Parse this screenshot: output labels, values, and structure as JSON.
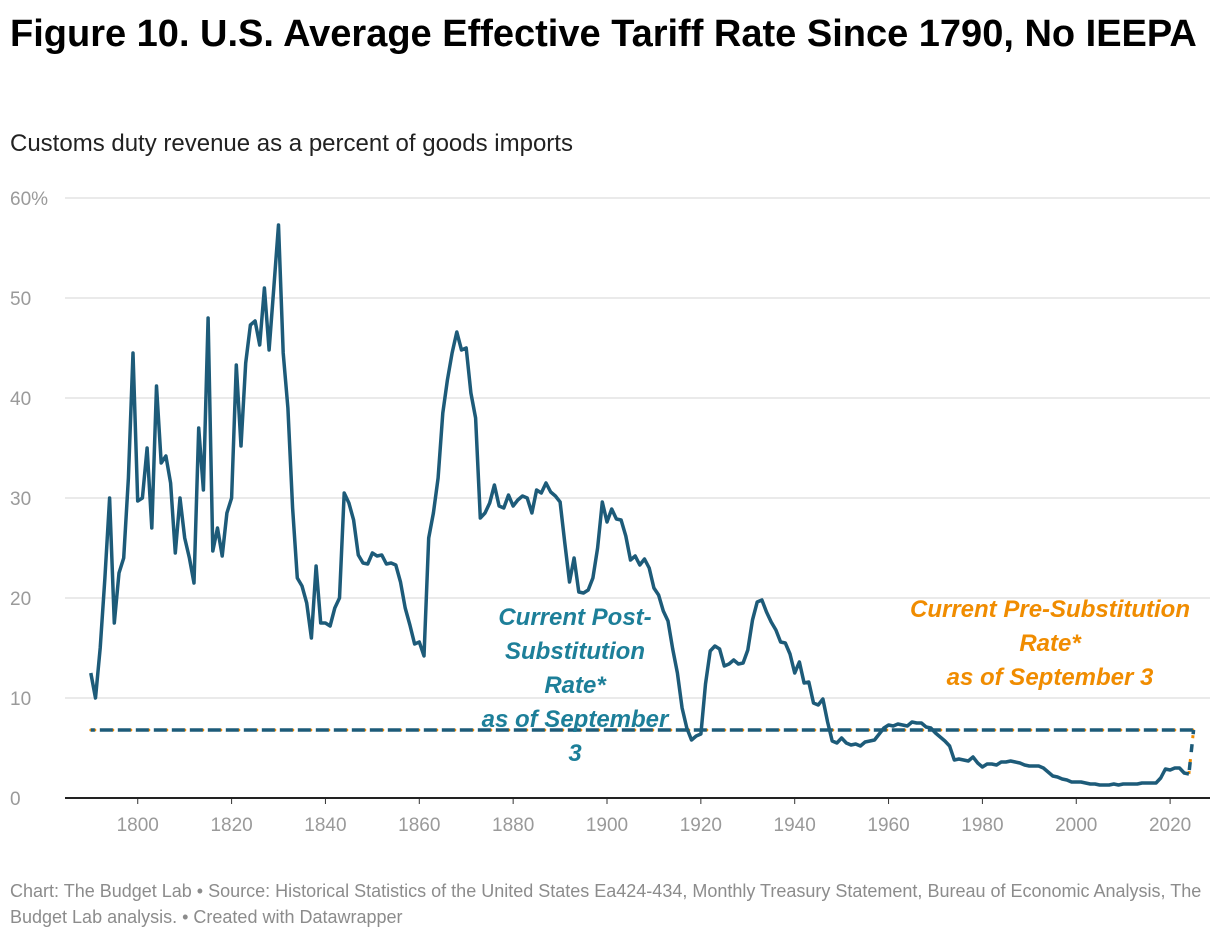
{
  "title": "Figure 10. U.S. Average Effective Tariff Rate Since 1790, No IEEPA",
  "subtitle": "Customs duty revenue as a percent of goods imports",
  "footer": "Chart: The Budget Lab • Source: Historical Statistics of the United States Ea424-434, Monthly Treasury Statement, Bureau of Economic Analysis, The Budget Lab analysis. • Created with Datawrapper",
  "colors": {
    "series": "#1d5b79",
    "post": "#1d7f99",
    "pre": "#f08c00",
    "grid": "#e3e3e3"
  },
  "chart_data": {
    "type": "line",
    "xlabel": "",
    "ylabel": "",
    "xlim": [
      1784.5,
      2028.5
    ],
    "ylim": [
      0,
      60
    ],
    "yticks": [
      0,
      10,
      20,
      30,
      40,
      50,
      60
    ],
    "ytick_labels": [
      "0",
      "10",
      "20",
      "30",
      "40",
      "50",
      "60%"
    ],
    "xticks": [
      1800,
      1820,
      1840,
      1860,
      1880,
      1900,
      1920,
      1940,
      1960,
      1980,
      2000,
      2020
    ],
    "xtick_labels": [
      "1800",
      "1820",
      "1840",
      "1860",
      "1880",
      "1900",
      "1920",
      "1940",
      "1960",
      "1980",
      "2000",
      "2020"
    ],
    "grid": true,
    "series": [
      {
        "x_start": 1790,
        "values": [
          12.5,
          10,
          15,
          22,
          30,
          17.5,
          22.5,
          24,
          32,
          44.5,
          29.7,
          30,
          35,
          27,
          41.2,
          33.5,
          34.2,
          31.5,
          24.5,
          30,
          26,
          24,
          21.5,
          37,
          30.8,
          48,
          24.7,
          27,
          24.2,
          28.5,
          30,
          43.3,
          35.2,
          43.5,
          47.3,
          47.7,
          45.3,
          51,
          44.8,
          51,
          57.3,
          44.5,
          39,
          29,
          22,
          21.2,
          19.5,
          16,
          23.2,
          17.5,
          17.5,
          17.2,
          19,
          20,
          30.5,
          29.5,
          27.8,
          24.3,
          23.5,
          23.4,
          24.5,
          24.2,
          24.3,
          23.4,
          23.5,
          23.3,
          21.6,
          19,
          17.3,
          15.4,
          15.6,
          14.2,
          26,
          28.5,
          32,
          38.5,
          41.8,
          44.5,
          46.6,
          44.8,
          45,
          40.5,
          38,
          28,
          28.5,
          29.5,
          31.3,
          29.2,
          29,
          30.3,
          29.2,
          29.8,
          30.2,
          30,
          28.5,
          30.8,
          30.5,
          31.5,
          30.6,
          30.2,
          29.6,
          25.5,
          21.6,
          24,
          20.6,
          20.5,
          20.8,
          22,
          25,
          29.6,
          27.6,
          28.9,
          27.9,
          27.8,
          26.2,
          23.8,
          24.2,
          23.3,
          23.9,
          23,
          21,
          20.3,
          18.7,
          17.7,
          14.9,
          12.5,
          9,
          7,
          5.8,
          6.2,
          6.4,
          11.4,
          14.7,
          15.2,
          14.9,
          13.2,
          13.4,
          13.8,
          13.4,
          13.5,
          14.8,
          17.8,
          19.6,
          19.8,
          18.6,
          17.6,
          16.8,
          15.6,
          15.5,
          14.4,
          12.5,
          13.6,
          11.5,
          11.6,
          9.5,
          9.3,
          9.9,
          7.6,
          5.7,
          5.5,
          6,
          5.5,
          5.3,
          5.4,
          5.2,
          5.6,
          5.7,
          5.8,
          6.4,
          7,
          7.3,
          7.2,
          7.4,
          7.3,
          7.2,
          7.6,
          7.5,
          7.5,
          7.1,
          7,
          6.5,
          6.1,
          5.7,
          5.2,
          3.8,
          3.9,
          3.8,
          3.7,
          4.1,
          3.5,
          3.1,
          3.4,
          3.4,
          3.3,
          3.6,
          3.6,
          3.7,
          3.6,
          3.5,
          3.3,
          3.2,
          3.2,
          3.2,
          3,
          2.6,
          2.2,
          2.1,
          1.9,
          1.8,
          1.6,
          1.6,
          1.6,
          1.5,
          1.4,
          1.4,
          1.3,
          1.3,
          1.3,
          1.4,
          1.3,
          1.4,
          1.4,
          1.4,
          1.4,
          1.5,
          1.5,
          1.5,
          1.5,
          2,
          2.9,
          2.8,
          3,
          3,
          2.5,
          2.4
        ]
      }
    ],
    "reference_lines": [
      {
        "label": "Current Post-Substitution Rate* as of September 3",
        "value": 6.8,
        "x_from": 1790,
        "x_to": 2025,
        "style": "dashed"
      },
      {
        "label": "Current Pre-Substitution Rate* as of September 3",
        "value": 6.8,
        "x_from": 1790,
        "x_to": 2025,
        "style": "dashed"
      }
    ],
    "annotations": {
      "post": [
        "Current Post-",
        "Substitution",
        "Rate*",
        "as of September",
        "3"
      ],
      "pre": [
        "Current Pre-Substitution",
        "Rate*",
        "as of September 3"
      ]
    }
  }
}
